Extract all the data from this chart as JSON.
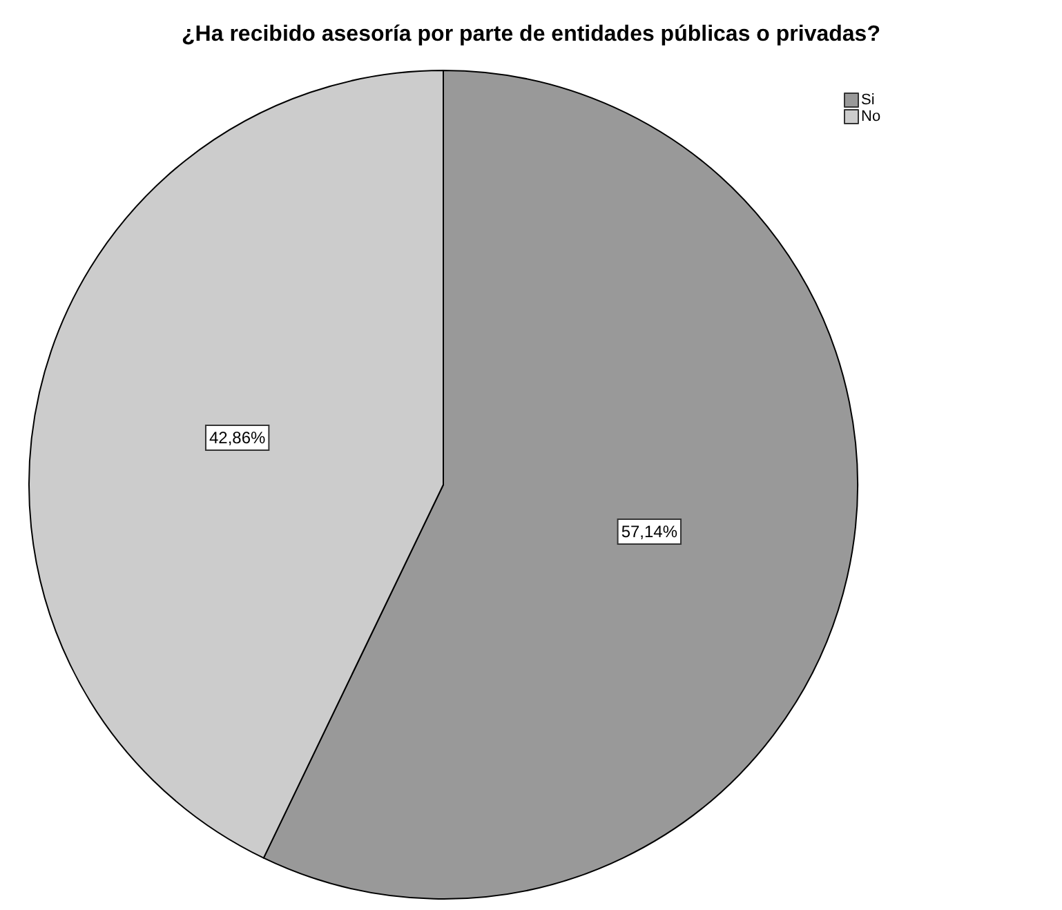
{
  "chart_data": {
    "type": "pie",
    "title": "¿Ha recibido asesoría por parte de entidades públicas o privadas?",
    "categories": [
      "Si",
      "No"
    ],
    "values": [
      57.14,
      42.86
    ],
    "colors": [
      "#999999",
      "#cccccc"
    ],
    "value_labels": [
      "57,14%",
      "42,86%"
    ],
    "legend": "top right"
  }
}
